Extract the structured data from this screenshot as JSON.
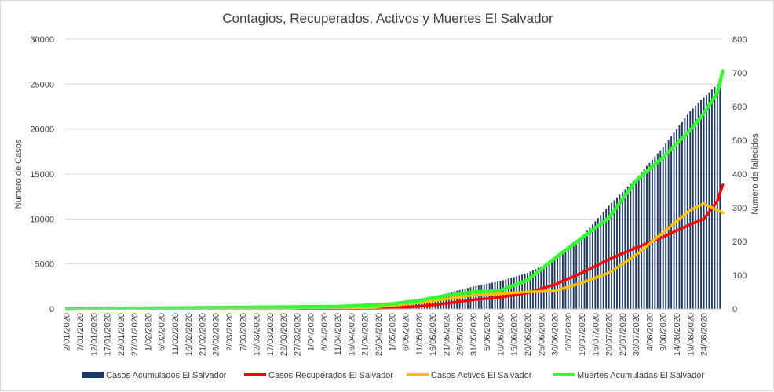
{
  "chart_data": {
    "type": "bar+line",
    "title": "Contagios, Recuperados, Activos y Muertes El Salvador",
    "ylabel_left": "Numero de Casos",
    "ylabel_right": "Numero de fallecidos",
    "ylim_left": [
      0,
      30000
    ],
    "ylim_right": [
      0,
      800
    ],
    "yticks_left": [
      "0",
      "5000",
      "10000",
      "15000",
      "20000",
      "25000",
      "30000"
    ],
    "yticks_right": [
      "0",
      "100",
      "200",
      "300",
      "400",
      "500",
      "600",
      "700",
      "800"
    ],
    "x_tick_labels": [
      "2/01/2020",
      "7/01/2020",
      "12/01/2020",
      "17/01/2020",
      "22/01/2020",
      "27/01/2020",
      "1/02/2020",
      "6/02/2020",
      "11/02/2020",
      "16/02/2020",
      "21/02/2020",
      "26/02/2020",
      "2/03/2020",
      "7/03/2020",
      "12/03/2020",
      "17/03/2020",
      "22/03/2020",
      "27/03/2020",
      "1/04/2020",
      "6/04/2020",
      "11/04/2020",
      "16/04/2020",
      "21/04/2020",
      "26/04/2020",
      "1/05/2020",
      "6/05/2020",
      "11/05/2020",
      "16/05/2020",
      "21/05/2020",
      "26/05/2020",
      "31/05/2020",
      "5/06/2020",
      "10/06/2020",
      "15/06/2020",
      "20/06/2020",
      "25/06/2020",
      "30/06/2020",
      "5/07/2020",
      "10/07/2020",
      "15/07/2020",
      "20/07/2020",
      "25/07/2020",
      "30/07/2020",
      "4/08/2020",
      "9/08/2020",
      "14/08/2020",
      "19/08/2020",
      "24/08/2020"
    ],
    "x_tick_step_days": 5,
    "total_days": 242,
    "grid": true,
    "legend_position": "bottom",
    "series": [
      {
        "name": "Casos Acumulados El Salvador",
        "kind": "bar",
        "axis": "left",
        "color": "#1f3864",
        "points": [
          [
            0,
            0
          ],
          [
            80,
            0
          ],
          [
            90,
            100
          ],
          [
            100,
            200
          ],
          [
            110,
            300
          ],
          [
            120,
            600
          ],
          [
            130,
            1000
          ],
          [
            140,
            1700
          ],
          [
            150,
            2500
          ],
          [
            160,
            3100
          ],
          [
            170,
            4000
          ],
          [
            180,
            5400
          ],
          [
            190,
            8000
          ],
          [
            200,
            11500
          ],
          [
            210,
            14500
          ],
          [
            220,
            18000
          ],
          [
            230,
            22000
          ],
          [
            240,
            25000
          ],
          [
            242,
            25600
          ]
        ]
      },
      {
        "name": "Casos Recuperados El Salvador",
        "kind": "line",
        "axis": "left",
        "color": "#ff0000",
        "points": [
          [
            0,
            0
          ],
          [
            100,
            20
          ],
          [
            120,
            100
          ],
          [
            130,
            300
          ],
          [
            140,
            600
          ],
          [
            150,
            1000
          ],
          [
            160,
            1300
          ],
          [
            170,
            1800
          ],
          [
            180,
            2700
          ],
          [
            190,
            4000
          ],
          [
            200,
            5500
          ],
          [
            210,
            6800
          ],
          [
            220,
            8000
          ],
          [
            230,
            9400
          ],
          [
            235,
            10000
          ],
          [
            240,
            12000
          ],
          [
            242,
            13800
          ]
        ]
      },
      {
        "name": "Casos Activos El Salvador",
        "kind": "line",
        "axis": "left",
        "color": "#ffc000",
        "points": [
          [
            0,
            0
          ],
          [
            80,
            0
          ],
          [
            85,
            100
          ],
          [
            100,
            150
          ],
          [
            110,
            100
          ],
          [
            120,
            400
          ],
          [
            130,
            700
          ],
          [
            140,
            1100
          ],
          [
            150,
            1500
          ],
          [
            160,
            1700
          ],
          [
            170,
            1900
          ],
          [
            180,
            2000
          ],
          [
            190,
            2900
          ],
          [
            200,
            4000
          ],
          [
            210,
            6000
          ],
          [
            220,
            8500
          ],
          [
            230,
            11000
          ],
          [
            235,
            11700
          ],
          [
            240,
            11000
          ],
          [
            242,
            10700
          ]
        ]
      },
      {
        "name": "Muertes Acumuladas El Salvador",
        "kind": "line",
        "axis": "right",
        "color": "#33ff33",
        "points": [
          [
            0,
            0
          ],
          [
            100,
            7
          ],
          [
            120,
            15
          ],
          [
            130,
            25
          ],
          [
            140,
            40
          ],
          [
            150,
            50
          ],
          [
            160,
            55
          ],
          [
            170,
            85
          ],
          [
            180,
            150
          ],
          [
            190,
            210
          ],
          [
            200,
            270
          ],
          [
            210,
            380
          ],
          [
            220,
            450
          ],
          [
            230,
            530
          ],
          [
            235,
            580
          ],
          [
            240,
            640
          ],
          [
            242,
            706
          ]
        ]
      }
    ]
  }
}
